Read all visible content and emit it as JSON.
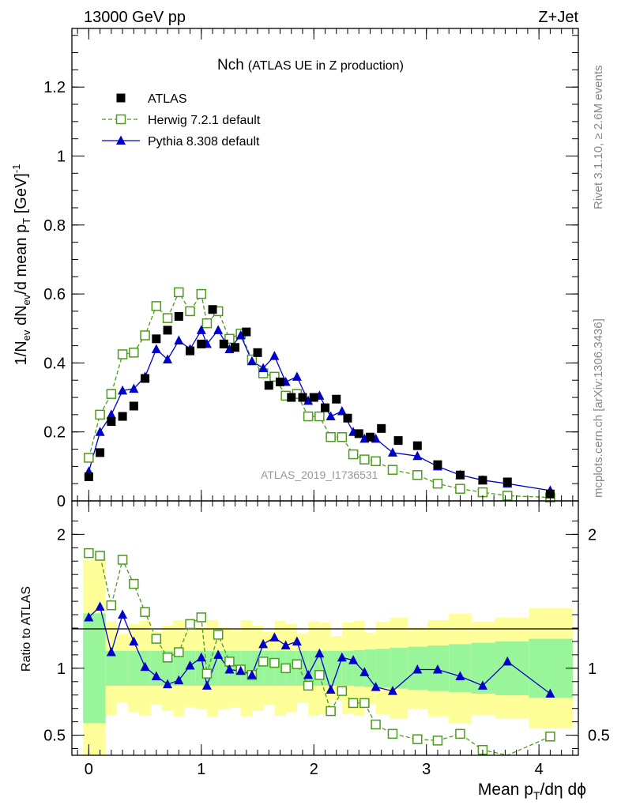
{
  "header": {
    "left": "13000 GeV pp",
    "right": "Z+Jet",
    "title": "Nch",
    "title_sub": "(ATLAS UE in Z production)",
    "watermark": "ATLAS_2019_I1736531",
    "side_top": "Rivet 3.1.10, ≥ 2.6M events",
    "side_bottom": "mcplots.cern.ch [arXiv:1306.3436]"
  },
  "chart_data": {
    "type": "scatter",
    "xlabel": "Mean p_T/dη dϕ",
    "ylabel": "1/N_ev dN_ev/d mean p_T [GeV]^-1",
    "ratio_label": "Ratio to ATLAS",
    "xlim": [
      -0.15,
      4.35
    ],
    "ylim": [
      0,
      1.37
    ],
    "ratio_ylim": [
      0.35,
      2.25
    ],
    "x_ticks": [
      "0",
      "1",
      "2",
      "3",
      "4"
    ],
    "y_ticks": [
      "0",
      "0.2",
      "0.4",
      "0.6",
      "0.8",
      "1",
      "1.2"
    ],
    "ratio_ticks": [
      "0.5",
      "1",
      "2"
    ],
    "legend_position": "top-left",
    "colors": {
      "atlas": "#000000",
      "herwig": "#4d9a1e",
      "pythia": "#0000cc",
      "band_inner": "#99f599",
      "band_outer": "#ffff99"
    },
    "series": [
      {
        "name": "ATLAS",
        "x": [
          0.0,
          0.1,
          0.2,
          0.3,
          0.4,
          0.5,
          0.6,
          0.7,
          0.8,
          0.9,
          1.0,
          1.1,
          1.2,
          1.3,
          1.4,
          1.5,
          1.6,
          1.7,
          1.8,
          1.9,
          2.0,
          2.1,
          2.2,
          2.3,
          2.4,
          2.5,
          2.6,
          2.75,
          2.92,
          3.1,
          3.3,
          3.5,
          3.72,
          4.1
        ],
        "y": [
          0.07,
          0.14,
          0.23,
          0.245,
          0.275,
          0.355,
          0.47,
          0.495,
          0.535,
          0.435,
          0.455,
          0.555,
          0.455,
          0.445,
          0.49,
          0.43,
          0.335,
          0.345,
          0.3,
          0.3,
          0.3,
          0.27,
          0.295,
          0.24,
          0.195,
          0.185,
          0.21,
          0.175,
          0.16,
          0.105,
          0.075,
          0.06,
          0.055,
          0.02
        ]
      },
      {
        "name": "Herwig 7.2.1 default",
        "x": [
          0.0,
          0.1,
          0.2,
          0.3,
          0.4,
          0.5,
          0.6,
          0.7,
          0.8,
          0.9,
          1.0,
          1.05,
          1.15,
          1.25,
          1.35,
          1.45,
          1.55,
          1.65,
          1.75,
          1.85,
          1.95,
          2.05,
          2.15,
          2.25,
          2.35,
          2.45,
          2.55,
          2.7,
          2.92,
          3.1,
          3.3,
          3.5,
          3.72,
          4.1
        ],
        "y": [
          0.125,
          0.25,
          0.31,
          0.425,
          0.43,
          0.48,
          0.565,
          0.53,
          0.605,
          0.55,
          0.6,
          0.515,
          0.55,
          0.47,
          0.485,
          0.41,
          0.37,
          0.36,
          0.305,
          0.31,
          0.245,
          0.245,
          0.185,
          0.185,
          0.135,
          0.12,
          0.115,
          0.09,
          0.075,
          0.05,
          0.035,
          0.025,
          0.015,
          0.01
        ]
      },
      {
        "name": "Pythia 8.308 default",
        "x": [
          0.0,
          0.1,
          0.2,
          0.3,
          0.4,
          0.5,
          0.6,
          0.7,
          0.8,
          0.9,
          1.0,
          1.05,
          1.15,
          1.25,
          1.35,
          1.45,
          1.55,
          1.65,
          1.75,
          1.85,
          1.95,
          2.05,
          2.15,
          2.25,
          2.35,
          2.45,
          2.55,
          2.7,
          2.92,
          3.1,
          3.3,
          3.5,
          3.72,
          4.1
        ],
        "y": [
          0.085,
          0.2,
          0.25,
          0.32,
          0.325,
          0.36,
          0.44,
          0.41,
          0.465,
          0.44,
          0.495,
          0.455,
          0.495,
          0.44,
          0.48,
          0.405,
          0.385,
          0.42,
          0.345,
          0.36,
          0.29,
          0.305,
          0.245,
          0.26,
          0.2,
          0.18,
          0.18,
          0.14,
          0.13,
          0.1,
          0.075,
          0.06,
          0.05,
          0.03
        ]
      }
    ],
    "ratio": {
      "herwig": [
        1.86,
        1.84,
        1.47,
        1.81,
        1.63,
        1.42,
        1.22,
        1.08,
        1.12,
        1.33,
        1.38,
        0.96,
        1.25,
        1.05,
        0.99,
        0.95,
        1.05,
        1.04,
        1.0,
        1.03,
        0.87,
        0.95,
        0.68,
        0.83,
        0.74,
        0.74,
        0.58,
        0.51,
        0.47,
        0.46,
        0.51,
        0.39,
        0.3,
        0.49
      ],
      "pythia": [
        1.38,
        1.46,
        1.12,
        1.4,
        1.2,
        1.01,
        0.94,
        0.88,
        0.91,
        1.02,
        1.08,
        0.87,
        1.1,
        0.99,
        0.98,
        0.95,
        1.18,
        1.23,
        1.17,
        1.2,
        0.95,
        1.11,
        0.84,
        1.08,
        1.06,
        0.97,
        0.86,
        0.83,
        0.99,
        0.99,
        0.94,
        0.87,
        1.05,
        0.81
      ]
    }
  }
}
